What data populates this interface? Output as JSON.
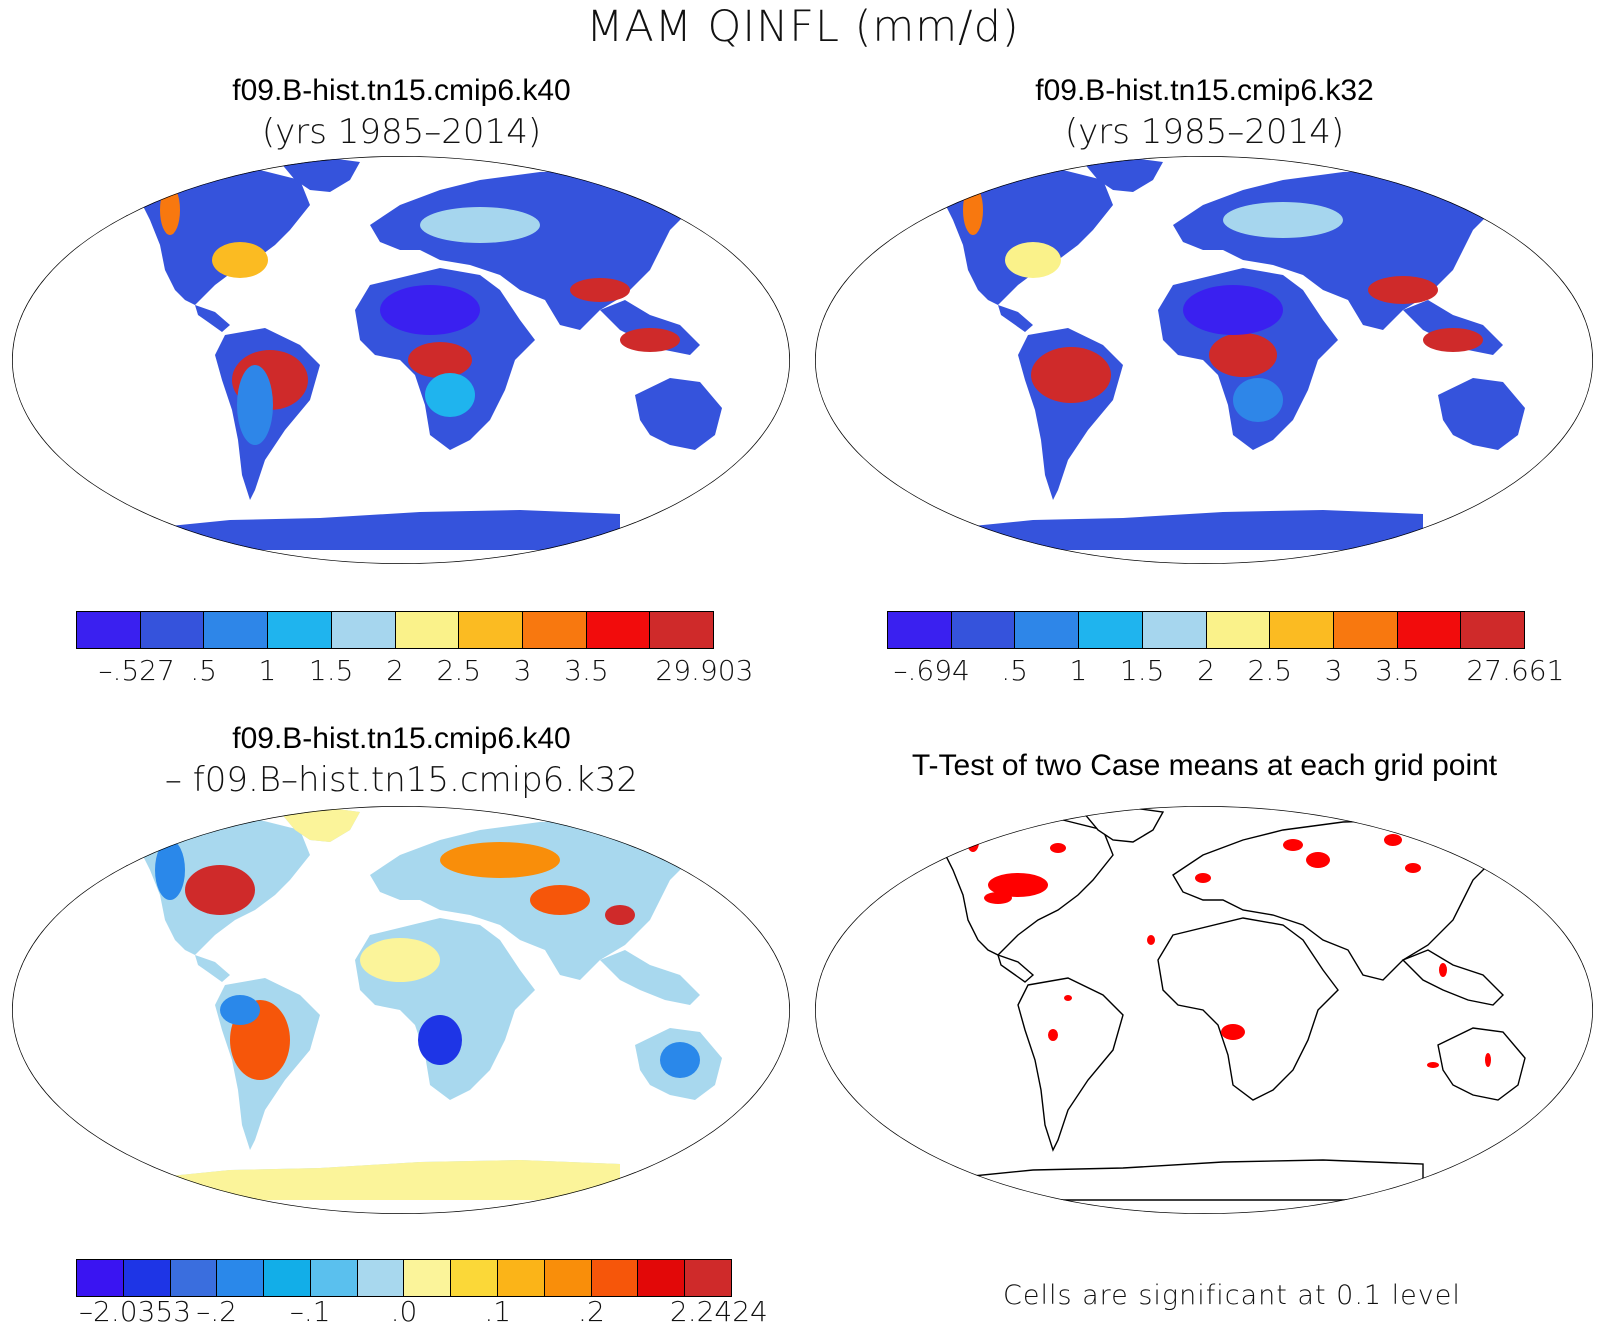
{
  "figure": {
    "title": "MAM QINFL (mm/d)"
  },
  "panels": {
    "tl": {
      "title": "f09.B-hist.tn15.cmip6.k40",
      "subtitle": "(yrs 1985–2014)"
    },
    "tr": {
      "title": "f09.B-hist.tn15.cmip6.k32",
      "subtitle": "(yrs 1985–2014)"
    },
    "bl": {
      "title": "f09.B-hist.tn15.cmip6.k40",
      "subtitle": "– f09.B–hist.tn15.cmip6.k32"
    },
    "br": {
      "title": "T-Test of two Case means at each grid point",
      "note": "Cells are significant at 0.1 level"
    }
  },
  "colorbars": {
    "case1": {
      "labels": [
        "–.527",
        ".5",
        "1",
        "1.5",
        "2",
        "2.5",
        "3",
        "3.5",
        "29.903"
      ],
      "colors": [
        "#3a20f0",
        "#3553dc",
        "#2e86e8",
        "#1fb4ee",
        "#a6d6ee",
        "#faf28a",
        "#fbbb22",
        "#f8780f",
        "#f20c0c",
        "#cf2a2a"
      ]
    },
    "case2": {
      "labels": [
        "–.694",
        ".5",
        "1",
        "1.5",
        "2",
        "2.5",
        "3",
        "3.5",
        "27.661"
      ],
      "colors": [
        "#3a20f0",
        "#3553dc",
        "#2e86e8",
        "#1fb4ee",
        "#a6d6ee",
        "#faf28a",
        "#fbbb22",
        "#f8780f",
        "#f20c0c",
        "#cf2a2a"
      ]
    },
    "diff": {
      "labels": [
        "–2.0353",
        "–.2",
        "–.1",
        ".0",
        ".1",
        ".2",
        "2.2424"
      ],
      "colors": [
        "#3a14f2",
        "#1e35e6",
        "#3a6ede",
        "#2a88ea",
        "#12aee8",
        "#5ac0ee",
        "#a8d8ee",
        "#fbf49a",
        "#fbd838",
        "#fbb418",
        "#f98e0a",
        "#f6560a",
        "#e20808",
        "#cf2a2a"
      ]
    }
  }
}
